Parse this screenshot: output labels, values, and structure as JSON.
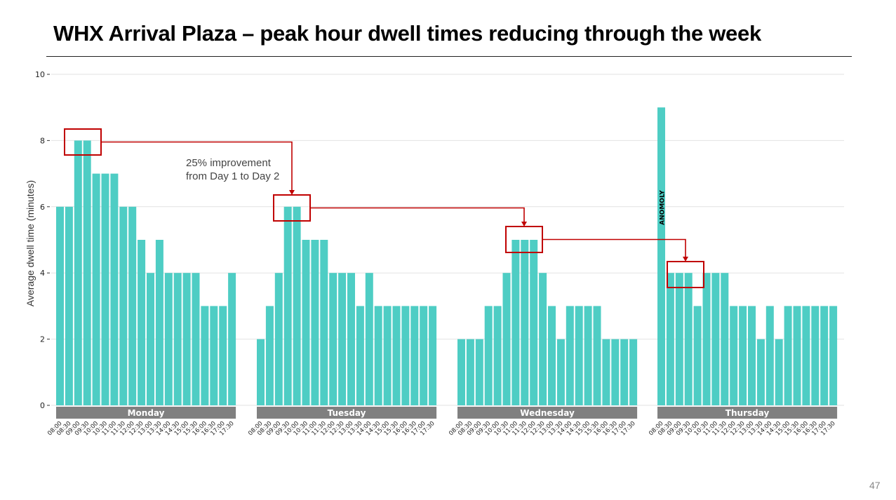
{
  "page": {
    "title": "WHX Arrival Plaza – peak hour dwell times reducing through the week",
    "page_number": "47"
  },
  "chart_data": {
    "type": "bar",
    "title": "",
    "xlabel": "",
    "ylabel": "Average dwell time (minutes)",
    "ylim": [
      0,
      10
    ],
    "yticks": [
      0,
      2,
      4,
      6,
      8,
      10
    ],
    "grid": true,
    "bar_color": "#4ECDC4",
    "categories": [
      "08:00",
      "08:30",
      "09:00",
      "09:30",
      "10:00",
      "10:30",
      "11:00",
      "11:30",
      "12:00",
      "12:30",
      "13:00",
      "13:30",
      "14:00",
      "14:30",
      "15:00",
      "15:30",
      "16:00",
      "16:30",
      "17:00",
      "17:30"
    ],
    "groups": [
      {
        "name": "Monday",
        "values": [
          6,
          6,
          8,
          8,
          7,
          7,
          7,
          6,
          6,
          5,
          4,
          5,
          4,
          4,
          4,
          4,
          3,
          3,
          3,
          4
        ]
      },
      {
        "name": "Tuesday",
        "values": [
          2,
          3,
          4,
          6,
          6,
          5,
          5,
          5,
          4,
          4,
          4,
          3,
          4,
          3,
          3,
          3,
          3,
          3,
          3,
          3
        ]
      },
      {
        "name": "Wednesday",
        "values": [
          2,
          2,
          2,
          3,
          3,
          4,
          5,
          5,
          5,
          4,
          3,
          2,
          3,
          3,
          3,
          3,
          2,
          2,
          2,
          2
        ]
      },
      {
        "name": "Thursday",
        "values": [
          9,
          4,
          4,
          4,
          3,
          4,
          4,
          4,
          3,
          3,
          3,
          2,
          3,
          2,
          3,
          3,
          3,
          3,
          3,
          3
        ]
      }
    ],
    "annotations": {
      "improvement_text": [
        "25% improvement",
        "from Day 1 to Day 2"
      ],
      "anomaly_label": "ANOMOLY",
      "highlight_color": "#C00000",
      "highlights": [
        {
          "group": "Monday",
          "from": "09:00",
          "to": "09:30",
          "value": 8
        },
        {
          "group": "Tuesday",
          "from": "09:30",
          "to": "10:00",
          "value": 6
        },
        {
          "group": "Wednesday",
          "from": "11:00",
          "to": "11:30",
          "value": 5
        },
        {
          "group": "Thursday",
          "from": "08:30",
          "to": "09:30",
          "value": 4
        }
      ]
    }
  }
}
